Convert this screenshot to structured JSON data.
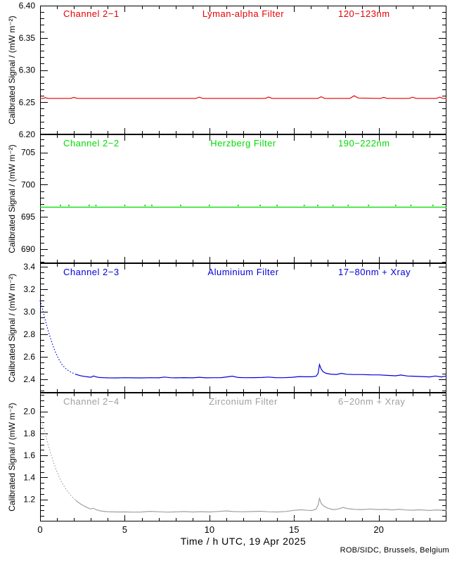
{
  "figure": {
    "credit": "ROB/SIDC, Brussels, Belgium"
  },
  "x_axis": {
    "title": "Time / h UTC, 19 Apr 2025",
    "lim": [
      0,
      24
    ],
    "ticks": [
      0,
      5,
      10,
      15,
      20
    ],
    "tick_labels": [
      "0",
      "5",
      "10",
      "15",
      "20"
    ],
    "minor_step": 1
  },
  "y_axis": {
    "title": "Calibrated Signal / (mW m⁻²)"
  },
  "chart_data": [
    {
      "type": "line",
      "channel": "Channel 2−1",
      "filter": "Lyman-alpha Filter",
      "range_label": "120−123nm",
      "color": "#e60000",
      "ylim": [
        6.2,
        6.4
      ],
      "yticks": [
        6.2,
        6.25,
        6.3,
        6.35,
        6.4
      ],
      "ytick_labels": [
        "6.20",
        "6.25",
        "6.30",
        "6.35",
        "6.40"
      ],
      "yminor_step": 0.01,
      "points": [
        [
          0,
          6.256
        ],
        [
          0.2,
          6.256
        ],
        [
          0.3,
          6.2572
        ],
        [
          0.45,
          6.256
        ],
        [
          1.8,
          6.256
        ],
        [
          2.0,
          6.2575
        ],
        [
          2.2,
          6.256
        ],
        [
          9.2,
          6.256
        ],
        [
          9.4,
          6.2578
        ],
        [
          9.6,
          6.256
        ],
        [
          13.3,
          6.256
        ],
        [
          13.5,
          6.258
        ],
        [
          13.7,
          6.256
        ],
        [
          16.4,
          6.256
        ],
        [
          16.6,
          6.2585
        ],
        [
          16.8,
          6.256
        ],
        [
          18.3,
          6.256
        ],
        [
          18.55,
          6.26
        ],
        [
          18.8,
          6.2565
        ],
        [
          20.1,
          6.256
        ],
        [
          20.3,
          6.2575
        ],
        [
          20.5,
          6.256
        ],
        [
          21.8,
          6.256
        ],
        [
          22.0,
          6.2578
        ],
        [
          22.2,
          6.256
        ],
        [
          23.4,
          6.256
        ],
        [
          23.6,
          6.2578
        ],
        [
          23.8,
          6.256
        ],
        [
          24,
          6.256
        ]
      ]
    },
    {
      "type": "line",
      "channel": "Channel 2−2",
      "filter": "Herzberg Filter",
      "range_label": "190−222nm",
      "color": "#00dc00",
      "ylim": [
        687.8,
        707.8
      ],
      "yticks": [
        690,
        695,
        700,
        705
      ],
      "ytick_labels": [
        "690",
        "695",
        "700",
        "705"
      ],
      "yminor_step": 1,
      "points": [
        [
          0,
          696.5
        ],
        [
          24,
          696.5
        ]
      ],
      "dots": {
        "y": 696.78,
        "xs": [
          1.2,
          1.7,
          2.9,
          3.3,
          5.0,
          6.2,
          6.6,
          8.3,
          10.0,
          11.7,
          13.0,
          14.0,
          15.6,
          16.4,
          17.3,
          18.2,
          19.4,
          21.0,
          21.9,
          23.2
        ]
      }
    },
    {
      "type": "line",
      "channel": "Channel 2−3",
      "filter": "Aluminium Filter",
      "range_label": "17−80nm + Xray",
      "color": "#0000dc",
      "ylim": [
        2.28,
        3.43
      ],
      "yticks": [
        2.4,
        2.6,
        2.8,
        3.0,
        3.2,
        3.4
      ],
      "ytick_labels": [
        "2.4",
        "2.6",
        "2.8",
        "3.0",
        "3.2",
        "3.4"
      ],
      "yminor_step": 0.05,
      "dotted_until": 2.1,
      "points": [
        [
          0,
          3.1
        ],
        [
          0.1,
          3.05
        ],
        [
          0.2,
          2.99
        ],
        [
          0.35,
          2.9
        ],
        [
          0.5,
          2.82
        ],
        [
          0.65,
          2.745
        ],
        [
          0.8,
          2.68
        ],
        [
          0.95,
          2.625
        ],
        [
          1.1,
          2.578
        ],
        [
          1.3,
          2.528
        ],
        [
          1.5,
          2.497
        ],
        [
          1.7,
          2.473
        ],
        [
          1.9,
          2.456
        ],
        [
          2.1,
          2.444
        ],
        [
          2.35,
          2.432
        ],
        [
          2.6,
          2.425
        ],
        [
          2.85,
          2.42
        ],
        [
          3.0,
          2.417
        ],
        [
          3.15,
          2.428
        ],
        [
          3.3,
          2.421
        ],
        [
          3.5,
          2.415
        ],
        [
          3.75,
          2.413
        ],
        [
          4,
          2.412
        ],
        [
          4.5,
          2.411
        ],
        [
          5,
          2.413
        ],
        [
          5.5,
          2.412
        ],
        [
          6,
          2.411
        ],
        [
          6.5,
          2.413
        ],
        [
          7,
          2.412
        ],
        [
          7.35,
          2.419
        ],
        [
          7.7,
          2.413
        ],
        [
          8,
          2.412
        ],
        [
          8.5,
          2.414
        ],
        [
          9,
          2.412
        ],
        [
          9.4,
          2.417
        ],
        [
          9.8,
          2.412
        ],
        [
          10.2,
          2.413
        ],
        [
          10.7,
          2.414
        ],
        [
          11.1,
          2.421
        ],
        [
          11.35,
          2.427
        ],
        [
          11.7,
          2.415
        ],
        [
          12.1,
          2.413
        ],
        [
          12.6,
          2.414
        ],
        [
          13.1,
          2.415
        ],
        [
          13.5,
          2.419
        ],
        [
          13.9,
          2.414
        ],
        [
          14.4,
          2.413
        ],
        [
          14.9,
          2.417
        ],
        [
          15.3,
          2.423
        ],
        [
          15.7,
          2.421
        ],
        [
          16.05,
          2.421
        ],
        [
          16.3,
          2.426
        ],
        [
          16.42,
          2.45
        ],
        [
          16.5,
          2.53
        ],
        [
          16.6,
          2.49
        ],
        [
          16.72,
          2.465
        ],
        [
          16.9,
          2.452
        ],
        [
          17.15,
          2.445
        ],
        [
          17.5,
          2.442
        ],
        [
          17.8,
          2.452
        ],
        [
          18.1,
          2.444
        ],
        [
          18.5,
          2.441
        ],
        [
          19,
          2.441
        ],
        [
          19.5,
          2.439
        ],
        [
          20,
          2.438
        ],
        [
          20.5,
          2.434
        ],
        [
          21,
          2.43
        ],
        [
          21.3,
          2.437
        ],
        [
          21.7,
          2.428
        ],
        [
          22.1,
          2.426
        ],
        [
          22.6,
          2.423
        ],
        [
          23,
          2.42
        ],
        [
          23.35,
          2.428
        ],
        [
          23.7,
          2.42
        ],
        [
          24,
          2.429
        ]
      ]
    },
    {
      "type": "line",
      "channel": "Channel 2−4",
      "filter": "Zirconium Filter",
      "range_label": "6−20nm + Xray",
      "color": "#a0a0a0",
      "ylim": [
        1.0,
        2.17
      ],
      "yticks": [
        1.2,
        1.4,
        1.6,
        1.8,
        2.0
      ],
      "ytick_labels": [
        "1.2",
        "1.4",
        "1.6",
        "1.8",
        "2.0"
      ],
      "yminor_step": 0.05,
      "dotted_until": 2.1,
      "points": [
        [
          0,
          1.95
        ],
        [
          0.1,
          1.9
        ],
        [
          0.2,
          1.85
        ],
        [
          0.35,
          1.77
        ],
        [
          0.5,
          1.685
        ],
        [
          0.65,
          1.607
        ],
        [
          0.8,
          1.535
        ],
        [
          0.95,
          1.47
        ],
        [
          1.1,
          1.415
        ],
        [
          1.3,
          1.35
        ],
        [
          1.5,
          1.3
        ],
        [
          1.7,
          1.257
        ],
        [
          1.9,
          1.222
        ],
        [
          2.1,
          1.193
        ],
        [
          2.35,
          1.163
        ],
        [
          2.6,
          1.14
        ],
        [
          2.85,
          1.122
        ],
        [
          3.0,
          1.113
        ],
        [
          3.15,
          1.121
        ],
        [
          3.3,
          1.108
        ],
        [
          3.5,
          1.098
        ],
        [
          3.75,
          1.092
        ],
        [
          4,
          1.089
        ],
        [
          4.5,
          1.086
        ],
        [
          5,
          1.087
        ],
        [
          5.5,
          1.085
        ],
        [
          6,
          1.086
        ],
        [
          6.5,
          1.092
        ],
        [
          7,
          1.088
        ],
        [
          7.5,
          1.085
        ],
        [
          8,
          1.087
        ],
        [
          8.5,
          1.09
        ],
        [
          9,
          1.086
        ],
        [
          9.5,
          1.089
        ],
        [
          10,
          1.086
        ],
        [
          10.5,
          1.091
        ],
        [
          11,
          1.096
        ],
        [
          11.4,
          1.09
        ],
        [
          12,
          1.088
        ],
        [
          12.5,
          1.09
        ],
        [
          13,
          1.093
        ],
        [
          13.5,
          1.088
        ],
        [
          14,
          1.086
        ],
        [
          14.5,
          1.091
        ],
        [
          15,
          1.101
        ],
        [
          15.4,
          1.106
        ],
        [
          15.8,
          1.101
        ],
        [
          16.05,
          1.1
        ],
        [
          16.3,
          1.112
        ],
        [
          16.42,
          1.15
        ],
        [
          16.5,
          1.21
        ],
        [
          16.6,
          1.165
        ],
        [
          16.75,
          1.14
        ],
        [
          17,
          1.12
        ],
        [
          17.3,
          1.108
        ],
        [
          17.6,
          1.113
        ],
        [
          17.9,
          1.128
        ],
        [
          18.2,
          1.116
        ],
        [
          18.6,
          1.11
        ],
        [
          19,
          1.108
        ],
        [
          19.5,
          1.113
        ],
        [
          20,
          1.108
        ],
        [
          20.4,
          1.111
        ],
        [
          20.8,
          1.105
        ],
        [
          21.2,
          1.111
        ],
        [
          21.6,
          1.104
        ],
        [
          22,
          1.102
        ],
        [
          22.4,
          1.106
        ],
        [
          23,
          1.1
        ],
        [
          23.4,
          1.105
        ],
        [
          24,
          1.102
        ]
      ],
      "outlier_dots": [
        {
          "x": 15.0,
          "y": 1.025
        }
      ]
    }
  ]
}
